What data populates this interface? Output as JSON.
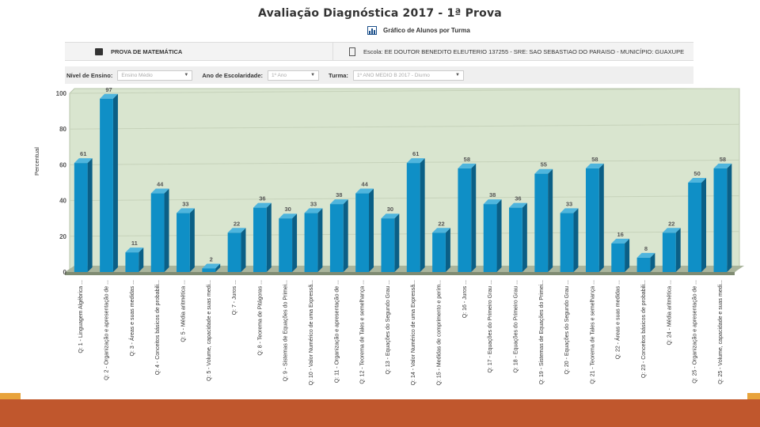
{
  "header": {
    "title": "Avaliação Diagnóstica 2017 - 1ª Prova",
    "chart_link_label": "Gráfico de Alunos por Turma",
    "chart_link_icon": "bar-chart-icon"
  },
  "info": {
    "exam_label": "PROVA DE MATEMÁTICA",
    "exam_icon": "book-icon",
    "school_icon": "clipboard-icon",
    "school_line": "Escola: EE DOUTOR BENEDITO ELEUTERIO 137255 - SRE: SAO SEBASTIAO DO PARAISO - MUNICÍPIO: GUAXUPE"
  },
  "filters": {
    "nivel_label": "Nível de Ensino:",
    "nivel_value": "Ensino Médio",
    "ano_label": "Ano de Escolaridade:",
    "ano_value": "1º Ano",
    "turma_label": "Turma:",
    "turma_value": "1º ANO MEDIO B 2017 - Diurno"
  },
  "colors": {
    "bar_front": "#0f8fc6",
    "bar_side": "#0b5f86",
    "bar_top": "#4fb5dd",
    "plot_bg": "#d9e5cf",
    "footer": "#c0572d",
    "accent": "#e8a33b"
  },
  "chart_data": {
    "type": "bar",
    "ylabel": "Percentual",
    "ylim": [
      0,
      100
    ],
    "yticks": [
      0,
      20,
      40,
      60,
      80,
      100
    ],
    "grid": true,
    "categories": [
      "Q: 1 - Linguagem Algébrica ...",
      "Q: 2 - Organização e apresentação de ...",
      "Q: 3 - Áreas e suas medidas ...",
      "Q: 4 - Conceitos básicos de probabili...",
      "Q: 5 - Média aritmética ...",
      "Q: 5 - Volume, capacidade e suas medi...",
      "Q: 7 - Juros ...",
      "Q: 8 - Teorema de Pitágoras ...",
      "Q: 9 - Sistemas de Equações do Primei...",
      "Q: 10 - Valor Numérico de uma Expressã...",
      "Q: 11 - Organização e apresentação de ...",
      "Q: 12 - Teorema de Tales e semelhança ...",
      "Q: 13 - Equações do Segundo Grau ...",
      "Q: 14 - Valor Numérico de uma Expressã...",
      "Q: 15 - Medidas de comprimento e perím...",
      "Q: 16 - Juros ...",
      "Q: 17 - Equações do Primeiro Grau ...",
      "Q: 18 - Equações do Primeiro Grau ...",
      "Q: 19 - Sistemas de Equações do Primei...",
      "Q: 20 - Equações do Segundo Grau ...",
      "Q: 21 - Teorema de Tales e semelhança ...",
      "Q: 22 - Áreas e suas medidas ...",
      "Q: 23 - Conceitos básicos de probabili...",
      "Q: 24 - Média aritmética ...",
      "Q: 25 - Organização e apresentação de ...",
      "Q: 25 - Volume, capacidade e suas medi..."
    ],
    "values": [
      61,
      97,
      11,
      44,
      33,
      2,
      22,
      36,
      30,
      33,
      38,
      44,
      30,
      61,
      22,
      58,
      38,
      36,
      55,
      33,
      58,
      16,
      8,
      22,
      50,
      58
    ]
  }
}
